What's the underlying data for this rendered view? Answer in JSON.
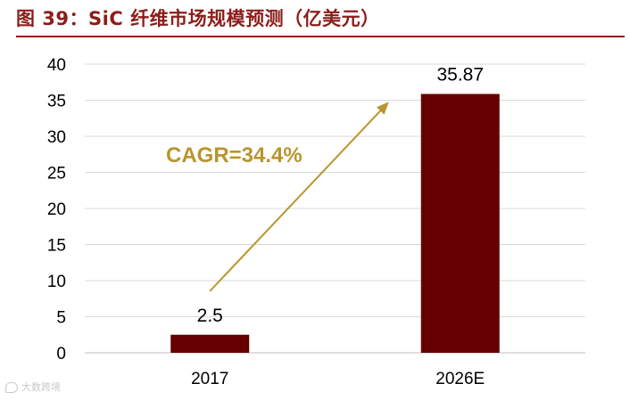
{
  "figure": {
    "title": "图 39：SiC 纤维市场规模预测（亿美元）"
  },
  "watermark": {
    "text": "大数跨境"
  },
  "colors": {
    "bar": "#660000",
    "arrow": "#b8952e",
    "cagr_text": "#b8952e",
    "title": "#8b1d1a",
    "grid": "#d9d9d9"
  },
  "chart_data": {
    "type": "bar",
    "title": "",
    "xlabel": "",
    "ylabel": "",
    "categories": [
      "2017",
      "2026E"
    ],
    "values": [
      2.5,
      35.87
    ],
    "data_labels": [
      "2.5",
      "35.87"
    ],
    "ylim": [
      0,
      40
    ],
    "yticks": [
      0,
      5,
      10,
      15,
      20,
      25,
      30,
      35,
      40
    ],
    "grid": true,
    "legend": "none",
    "annotations": [
      {
        "text": "CAGR=34.4%",
        "type": "arrow",
        "from_category": "2017",
        "to_category": "2026E"
      }
    ]
  }
}
